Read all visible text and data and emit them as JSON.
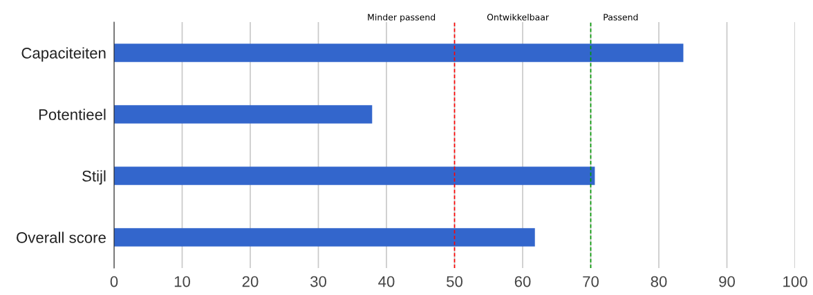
{
  "chart_data": {
    "type": "bar",
    "orientation": "horizontal",
    "categories": [
      "Capaciteiten",
      "Potentieel",
      "Stijl",
      "Overall score"
    ],
    "values": [
      83.6,
      37.9,
      70.6,
      61.8
    ],
    "color": "#3366cc",
    "xlim": [
      0,
      100
    ],
    "xticks": [
      0,
      10,
      20,
      30,
      40,
      50,
      60,
      70,
      80,
      90,
      100
    ],
    "grid": "x",
    "ref_lines": [
      {
        "axis": "x",
        "value": 50,
        "color": "#ff0000",
        "line_style": "dashed"
      },
      {
        "axis": "x",
        "value": 70,
        "color": "#009900",
        "line_style": "dashed"
      }
    ],
    "annotations": [
      "Minder passend",
      "Ontwikkelbaar",
      "Passend"
    ]
  }
}
